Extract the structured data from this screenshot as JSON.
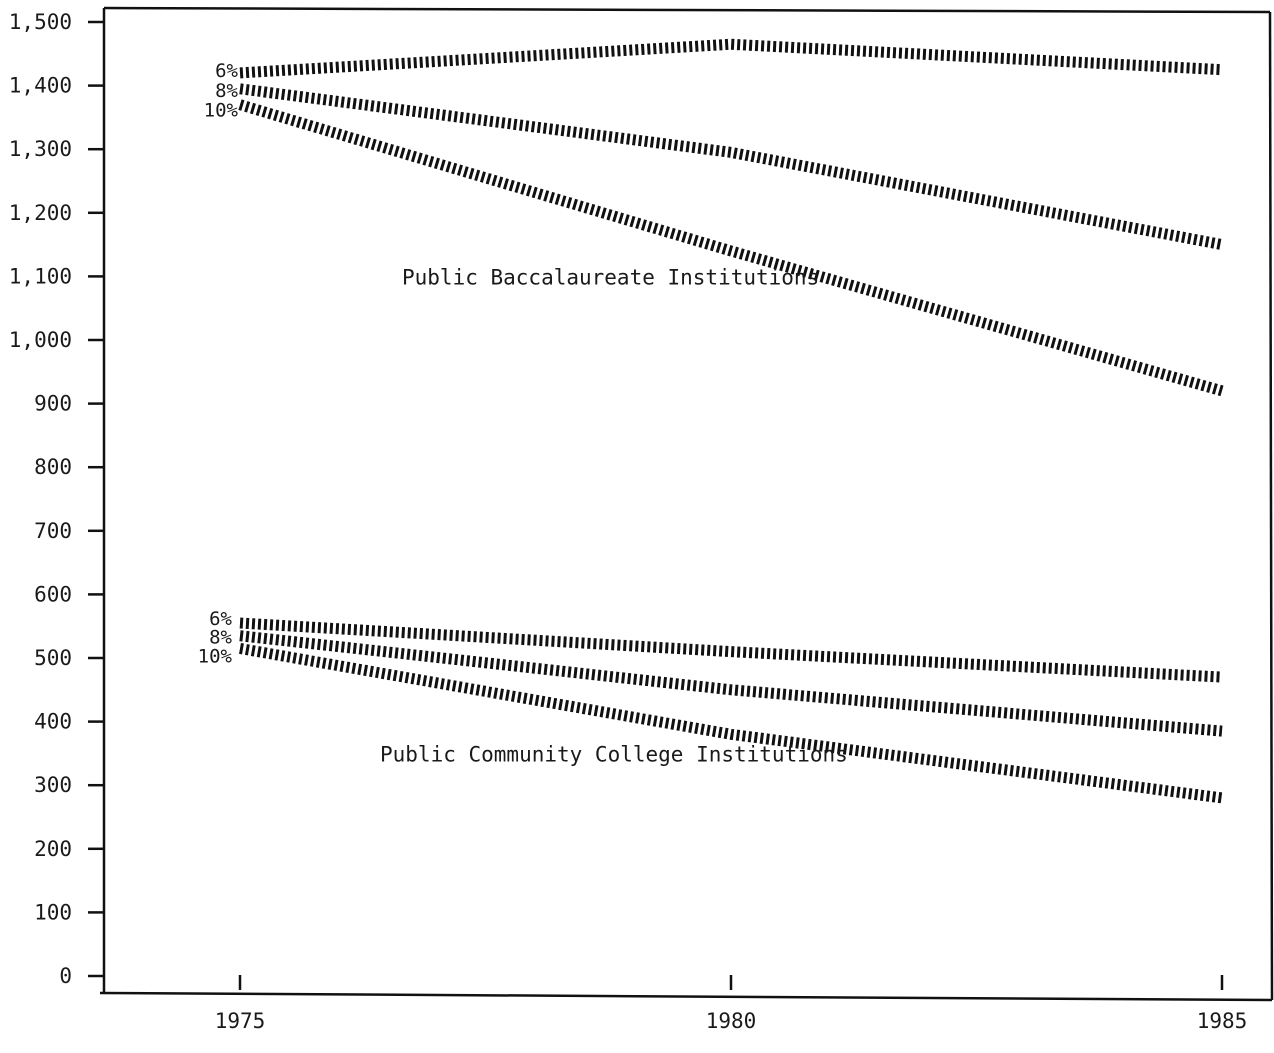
{
  "chart_data": {
    "type": "line",
    "title": "",
    "xlabel": "",
    "ylabel": "",
    "x": [
      1975,
      1980,
      1985
    ],
    "x_tick_labels": [
      "1975",
      "1980",
      "1985"
    ],
    "ylim": [
      0,
      1500
    ],
    "y_tick_labels": [
      "0",
      "100",
      "200",
      "300",
      "400",
      "500",
      "600",
      "700",
      "800",
      "900",
      "1,000",
      "1,100",
      "1,200",
      "1,300",
      "1,400",
      "1,500"
    ],
    "grid": false,
    "groups": [
      {
        "label": "Public Baccalaureate Institutions",
        "series": [
          {
            "name": "6%",
            "values": [
              1420,
              1465,
              1425
            ]
          },
          {
            "name": "8%",
            "values": [
              1395,
              1295,
              1150
            ]
          },
          {
            "name": "10%",
            "values": [
              1370,
              1140,
              920
            ]
          }
        ]
      },
      {
        "label": "Public Community College Institutions",
        "series": [
          {
            "name": "6%",
            "values": [
              555,
              510,
              470
            ]
          },
          {
            "name": "8%",
            "values": [
              535,
              450,
              385
            ]
          },
          {
            "name": "10%",
            "values": [
              515,
              380,
              280
            ]
          }
        ]
      }
    ]
  }
}
